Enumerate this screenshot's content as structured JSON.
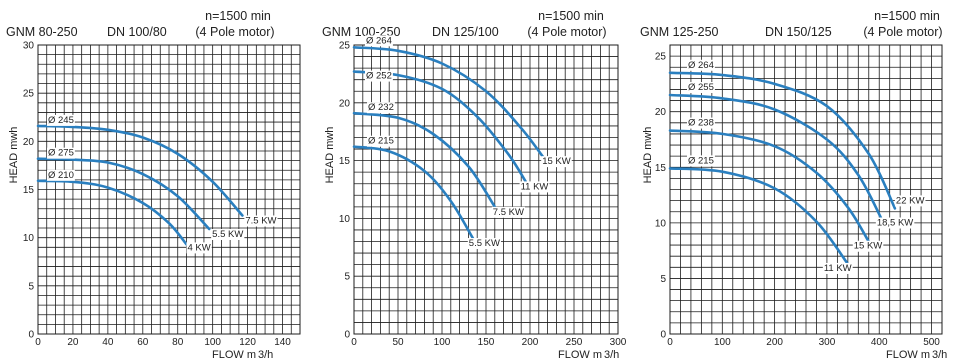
{
  "chart_data": [
    {
      "type": "line",
      "model": "GNM 80-250",
      "dn": "DN 100/80",
      "speed": "n=1500 min",
      "motor": "(4 Pole motor)",
      "ylabel": "HEAD mwh",
      "xlabel": "FLOW  m",
      "xunit": "3/h",
      "xlim": [
        0,
        150
      ],
      "ylim": [
        0,
        30
      ],
      "xticks": [
        0,
        20,
        40,
        60,
        80,
        100,
        120,
        140
      ],
      "yticks": [
        0,
        5,
        10,
        15,
        20,
        25,
        30
      ],
      "grid": true,
      "line_color": "#2a7fbf",
      "series": [
        {
          "name": "Ø 245",
          "power": "7.5 KW",
          "x": [
            0,
            20,
            40,
            60,
            80,
            100,
            117
          ],
          "y": [
            21.6,
            21.5,
            21.2,
            20.4,
            18.7,
            15.8,
            12.3
          ]
        },
        {
          "name": "Ø 275",
          "power": "5.5 KW",
          "x": [
            0,
            20,
            40,
            60,
            80,
            98
          ],
          "y": [
            18.2,
            18.1,
            17.8,
            16.6,
            14.3,
            10.9
          ]
        },
        {
          "name": "Ø 210",
          "power": "4 KW",
          "x": [
            0,
            20,
            40,
            60,
            75,
            85
          ],
          "y": [
            15.9,
            15.8,
            15.2,
            13.6,
            11.5,
            9.3
          ]
        }
      ]
    },
    {
      "type": "line",
      "model": "GNM 100-250",
      "dn": "DN 125/100",
      "speed": "n=1500 min",
      "motor": "(4 Pole motor)",
      "ylabel": "HEAD mwh",
      "xlabel": "FLOW  m",
      "xunit": "3/h",
      "xlim": [
        0,
        300
      ],
      "ylim": [
        0,
        25
      ],
      "xticks": [
        0,
        50,
        100,
        150,
        200,
        250,
        300
      ],
      "yticks": [
        0,
        5,
        10,
        15,
        20,
        25
      ],
      "grid": true,
      "line_color": "#2a7fbf",
      "series": [
        {
          "name": "Ø 264",
          "power": "15 KW",
          "x": [
            0,
            50,
            100,
            150,
            190,
            215
          ],
          "y": [
            24.8,
            24.5,
            23.4,
            21.0,
            17.8,
            15.3
          ]
        },
        {
          "name": "Ø 252",
          "power": "11 KW",
          "x": [
            0,
            50,
            100,
            140,
            175,
            195
          ],
          "y": [
            22.7,
            22.4,
            21.2,
            18.8,
            15.6,
            13.2
          ]
        },
        {
          "name": "Ø 232",
          "power": "7.5 KW",
          "x": [
            0,
            50,
            90,
            130,
            160
          ],
          "y": [
            19.1,
            18.7,
            17.3,
            14.5,
            11.0
          ]
        },
        {
          "name": "Ø 215",
          "power": "5.5 KW",
          "x": [
            0,
            40,
            80,
            110,
            135
          ],
          "y": [
            16.2,
            15.8,
            14.1,
            11.5,
            8.3
          ]
        }
      ]
    },
    {
      "type": "line",
      "model": "GNM 125-250",
      "dn": "DN 150/125",
      "speed": "n=1500 min",
      "motor": "(4 Pole motor)",
      "ylabel": "HEAD mwh",
      "xlabel": "FLOW  m",
      "xunit": "3/h",
      "xlim": [
        0,
        520
      ],
      "ylim": [
        0,
        26
      ],
      "xticks": [
        0,
        100,
        200,
        300,
        400,
        500
      ],
      "yticks": [
        0,
        5,
        10,
        15,
        20,
        25
      ],
      "grid": true,
      "line_color": "#2a7fbf",
      "series": [
        {
          "name": "Ø 264",
          "power": "22 KW",
          "x": [
            0,
            100,
            200,
            300,
            380,
            430
          ],
          "y": [
            23.5,
            23.3,
            22.5,
            20.5,
            16.2,
            11.3
          ]
        },
        {
          "name": "Ø 255",
          "power": "18,5 KW",
          "x": [
            0,
            100,
            200,
            300,
            360,
            405
          ],
          "y": [
            21.5,
            21.2,
            20.2,
            17.5,
            14.3,
            10.3
          ]
        },
        {
          "name": "Ø 238",
          "power": "15 KW",
          "x": [
            0,
            100,
            200,
            280,
            340,
            380
          ],
          "y": [
            18.3,
            18.0,
            16.9,
            14.5,
            11.4,
            8.3
          ]
        },
        {
          "name": "Ø 215",
          "power": "11 KW",
          "x": [
            0,
            100,
            200,
            280,
            340
          ],
          "y": [
            14.9,
            14.6,
            13.1,
            10.1,
            6.3
          ]
        }
      ]
    }
  ]
}
